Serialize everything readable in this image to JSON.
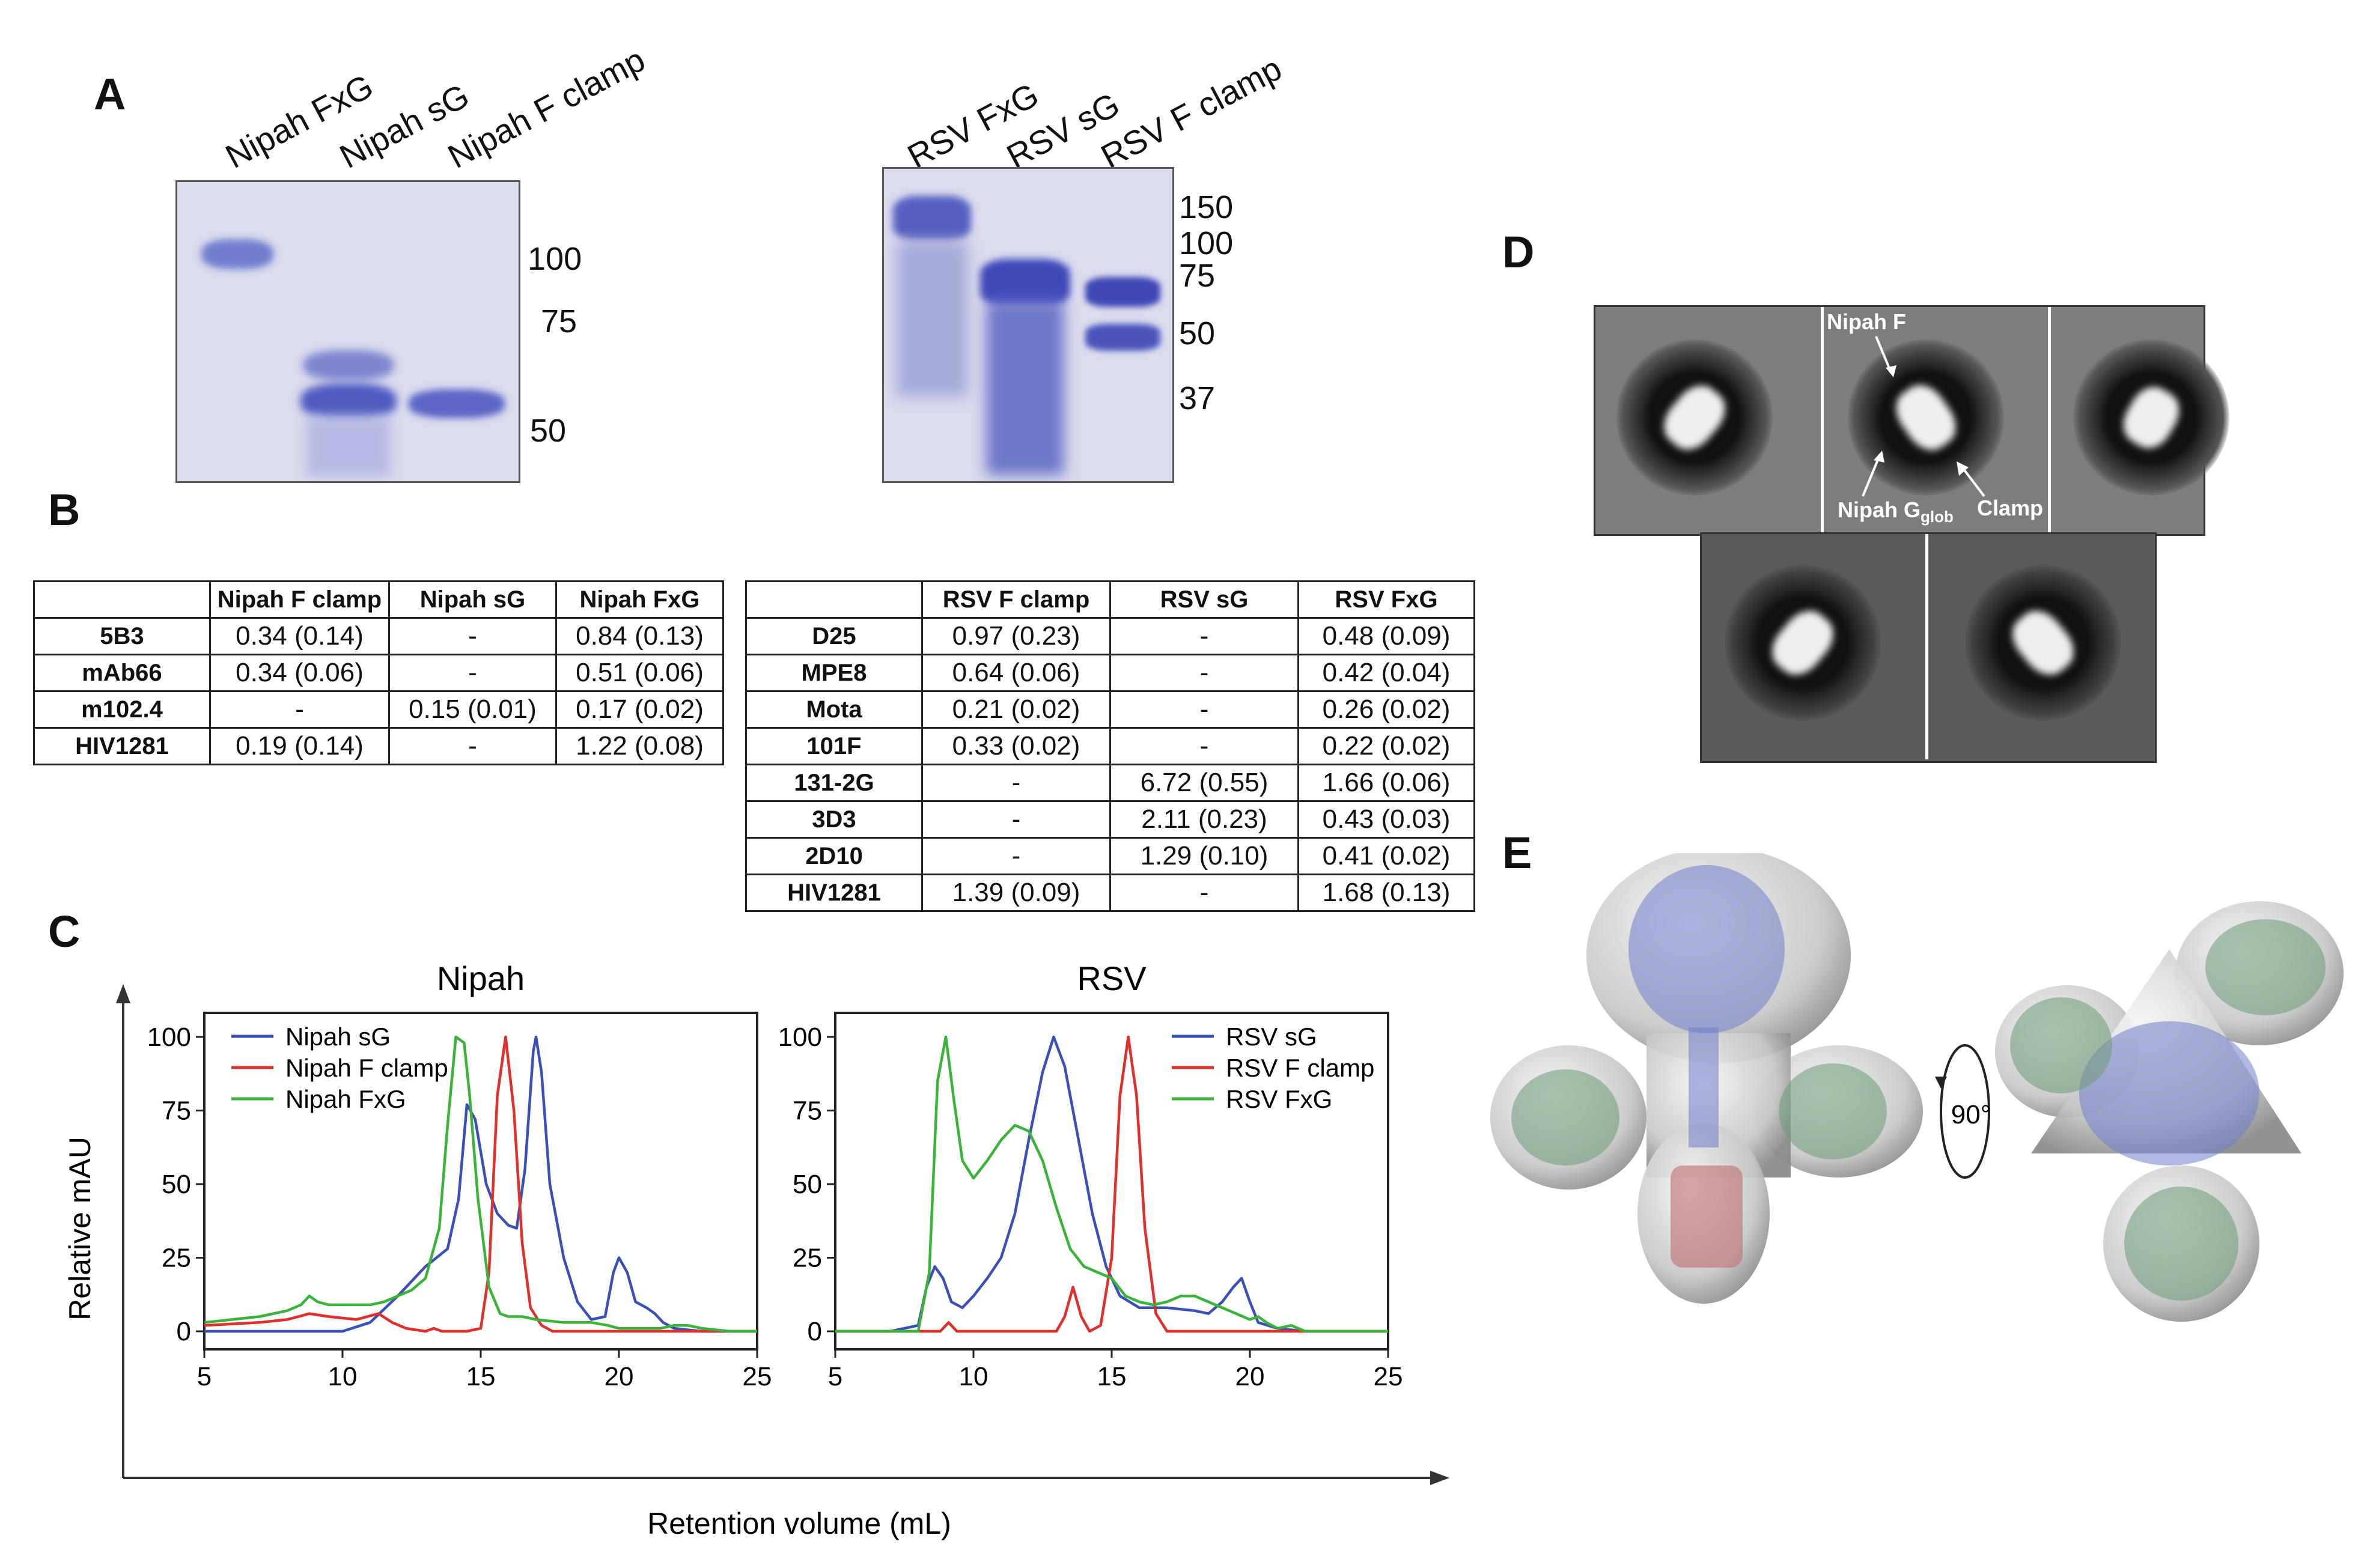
{
  "panels": {
    "A": "A",
    "B": "B",
    "C": "C",
    "D": "D",
    "E": "E"
  },
  "gel_nipah": {
    "lanes": [
      "Nipah FxG",
      "Nipah sG",
      "Nipah F clamp"
    ],
    "mw_markers": [
      "100",
      "75",
      "50"
    ]
  },
  "gel_rsv": {
    "lanes": [
      "RSV FxG",
      "RSV sG",
      "RSV F clamp"
    ],
    "mw_markers": [
      "150",
      "100",
      "75",
      "50",
      "37"
    ]
  },
  "table_nipah": {
    "columns": [
      "",
      "Nipah F clamp",
      "Nipah sG",
      "Nipah FxG"
    ],
    "rows": [
      [
        "5B3",
        "0.34 (0.14)",
        "-",
        "0.84 (0.13)"
      ],
      [
        "mAb66",
        "0.34 (0.06)",
        "-",
        "0.51 (0.06)"
      ],
      [
        "m102.4",
        "-",
        "0.15 (0.01)",
        "0.17 (0.02)"
      ],
      [
        "HIV1281",
        "0.19 (0.14)",
        "-",
        "1.22 (0.08)"
      ]
    ]
  },
  "table_rsv": {
    "columns": [
      "",
      "RSV F clamp",
      "RSV sG",
      "RSV FxG"
    ],
    "rows": [
      [
        "D25",
        "0.97 (0.23)",
        "-",
        "0.48 (0.09)"
      ],
      [
        "MPE8",
        "0.64 (0.06)",
        "-",
        "0.42 (0.04)"
      ],
      [
        "Mota",
        "0.21 (0.02)",
        "-",
        "0.26 (0.02)"
      ],
      [
        "101F",
        "0.33 (0.02)",
        "-",
        "0.22 (0.02)"
      ],
      [
        "131-2G",
        "-",
        "6.72 (0.55)",
        "1.66 (0.06)"
      ],
      [
        "3D3",
        "-",
        "2.11 (0.23)",
        "0.43 (0.03)"
      ],
      [
        "2D10",
        "-",
        "1.29 (0.10)",
        "0.41 (0.02)"
      ],
      [
        "HIV1281",
        "1.39 (0.09)",
        "-",
        "1.68 (0.13)"
      ]
    ]
  },
  "chart_data": [
    {
      "type": "line",
      "title": "Nipah",
      "xlabel": "Retention volume (mL)",
      "ylabel": "Relative mAU",
      "xlim": [
        5,
        25
      ],
      "ylim": [
        0,
        100
      ],
      "xticks": [
        5,
        10,
        15,
        20,
        25
      ],
      "yticks": [
        0,
        25,
        50,
        75,
        100
      ],
      "legend": "top-left",
      "series": [
        {
          "name": "Nipah sG",
          "color": "#3a50b8",
          "x": [
            5,
            8,
            9,
            10,
            11,
            12,
            13,
            13.8,
            14.2,
            14.5,
            14.8,
            15.2,
            15.6,
            16.0,
            16.3,
            16.6,
            16.9,
            17.0,
            17.2,
            17.5,
            18,
            18.5,
            19,
            19.5,
            19.8,
            20.0,
            20.3,
            20.6,
            21,
            21.3,
            21.6,
            22,
            23,
            25
          ],
          "y": [
            0,
            0,
            0,
            0,
            3,
            12,
            22,
            28,
            45,
            77,
            72,
            50,
            40,
            36,
            35,
            55,
            95,
            100,
            88,
            50,
            25,
            10,
            4,
            5,
            20,
            25,
            20,
            10,
            8,
            6,
            3,
            1,
            0,
            0
          ]
        },
        {
          "name": "Nipah F clamp",
          "color": "#e0302b",
          "x": [
            5,
            7,
            8,
            8.8,
            9.5,
            10.5,
            11.3,
            11.8,
            12.3,
            13,
            13.3,
            13.6,
            14,
            14.5,
            15,
            15.3,
            15.6,
            15.9,
            16.2,
            16.5,
            16.8,
            17.2,
            17.6,
            18,
            19,
            20,
            25
          ],
          "y": [
            2,
            3,
            4,
            6,
            5,
            4,
            6,
            3,
            1,
            0,
            1,
            0,
            0,
            0,
            1,
            20,
            80,
            100,
            75,
            30,
            8,
            2,
            0,
            0,
            0,
            0,
            0
          ]
        },
        {
          "name": "Nipah FxG",
          "color": "#3bb33b",
          "x": [
            5,
            6,
            7,
            8,
            8.5,
            8.8,
            9.1,
            9.5,
            10,
            10.5,
            11,
            11.5,
            12,
            12.5,
            13,
            13.5,
            13.8,
            14.1,
            14.4,
            14.6,
            14.9,
            15.3,
            15.7,
            16,
            16.5,
            17,
            18,
            19,
            19.6,
            20,
            20.5,
            21,
            21.5,
            22,
            22.5,
            23,
            24,
            25
          ],
          "y": [
            3,
            4,
            5,
            7,
            9,
            12,
            10,
            9,
            9,
            9,
            9,
            10,
            12,
            14,
            18,
            35,
            70,
            100,
            98,
            80,
            45,
            15,
            6,
            5,
            5,
            4,
            3,
            3,
            2,
            1,
            1,
            1,
            1,
            2,
            2,
            1,
            0,
            0
          ]
        }
      ]
    },
    {
      "type": "line",
      "title": "RSV",
      "xlabel": "Retention volume (mL)",
      "ylabel": "Relative mAU",
      "xlim": [
        5,
        25
      ],
      "ylim": [
        0,
        100
      ],
      "xticks": [
        5,
        10,
        15,
        20,
        25
      ],
      "yticks": [
        0,
        25,
        50,
        75,
        100
      ],
      "legend": "top-right",
      "series": [
        {
          "name": "RSV sG",
          "color": "#3a50b8",
          "x": [
            5,
            6,
            7,
            8,
            8.3,
            8.6,
            8.9,
            9.2,
            9.6,
            10,
            10.5,
            11,
            11.5,
            12,
            12.5,
            12.9,
            13.3,
            13.8,
            14.3,
            14.8,
            15.3,
            16,
            17,
            18,
            18.5,
            19,
            19.4,
            19.7,
            20,
            20.3,
            21,
            22,
            25
          ],
          "y": [
            0,
            0,
            0,
            2,
            15,
            22,
            18,
            10,
            8,
            12,
            18,
            25,
            40,
            65,
            88,
            100,
            90,
            65,
            40,
            22,
            12,
            8,
            8,
            7,
            6,
            10,
            15,
            18,
            10,
            3,
            1,
            0,
            0
          ]
        },
        {
          "name": "RSV F clamp",
          "color": "#e0302b",
          "x": [
            5,
            8,
            8.8,
            9.1,
            9.4,
            10,
            12,
            13,
            13.3,
            13.6,
            13.9,
            14.2,
            14.6,
            15,
            15.3,
            15.6,
            15.9,
            16.2,
            16.6,
            17,
            18,
            19,
            25
          ],
          "y": [
            0,
            0,
            0,
            3,
            0,
            0,
            0,
            0,
            5,
            15,
            5,
            0,
            2,
            25,
            80,
            100,
            80,
            35,
            6,
            0,
            0,
            0,
            0
          ]
        },
        {
          "name": "RSV FxG",
          "color": "#3bb33b",
          "x": [
            5,
            8,
            8.4,
            8.7,
            9.0,
            9.3,
            9.6,
            10,
            10.5,
            11,
            11.5,
            12,
            12.5,
            13,
            13.5,
            14,
            14.5,
            15,
            15.5,
            16,
            16.5,
            17,
            17.5,
            18,
            18.5,
            19,
            19.5,
            20,
            20.3,
            20.6,
            21,
            21.5,
            22,
            25
          ],
          "y": [
            0,
            0,
            20,
            85,
            100,
            78,
            58,
            52,
            58,
            65,
            70,
            68,
            58,
            42,
            28,
            22,
            20,
            18,
            12,
            10,
            9,
            10,
            12,
            12,
            10,
            8,
            6,
            4,
            5,
            3,
            1,
            2,
            0,
            0
          ]
        }
      ]
    }
  ],
  "em_labels": {
    "nipah_f": "Nipah F",
    "nipah_g": "Nipah G",
    "nipah_g_sub": "glob",
    "clamp": "Clamp"
  },
  "rotation_label": "90°"
}
